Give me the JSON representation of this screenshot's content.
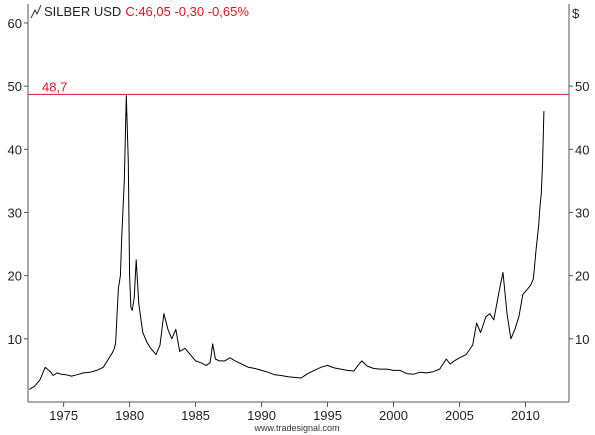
{
  "chart_data": {
    "type": "line",
    "title": "SILBER USD",
    "quote": "C:46,05 -0,30 -0,65%",
    "currency_label": "$",
    "footer": "www.tradesignal.com",
    "ylim": [
      0,
      63
    ],
    "xlim": [
      1972.3,
      2013.3
    ],
    "y_ticks_left": [
      10,
      20,
      30,
      40,
      50,
      60
    ],
    "y_ticks_right": [
      10,
      20,
      30,
      40,
      50
    ],
    "x_ticks": [
      1975,
      1980,
      1985,
      1990,
      1995,
      2000,
      2005,
      2010
    ],
    "reference_line": {
      "value": 48.7,
      "label": "48,7",
      "color": "#e0141e"
    },
    "colors": {
      "line": "#000000",
      "title": "#222222",
      "quote": "#e0141e",
      "axis": "#555555"
    },
    "grid": false,
    "series": [
      {
        "x": [
          1972.4,
          1972.8,
          1973.2,
          1973.6,
          1974.0,
          1974.2,
          1974.5,
          1974.8,
          1975.2,
          1975.6,
          1976.0,
          1976.5,
          1977.0,
          1977.5,
          1978.0,
          1978.4,
          1978.7,
          1978.85,
          1978.95,
          1979.05,
          1979.15,
          1979.3,
          1979.4,
          1979.6,
          1979.75,
          1979.9,
          1980.0,
          1980.1,
          1980.2,
          1980.35,
          1980.5,
          1980.7,
          1981.0,
          1981.3,
          1981.6,
          1982.0,
          1982.3,
          1982.6,
          1982.9,
          1983.2,
          1983.5,
          1983.8,
          1984.2,
          1984.6,
          1985.0,
          1985.4,
          1985.8,
          1986.1,
          1986.3,
          1986.5,
          1986.8,
          1987.2,
          1987.6,
          1988.0,
          1988.5,
          1989.0,
          1989.5,
          1990.0,
          1990.5,
          1991.0,
          1991.5,
          1992.0,
          1992.5,
          1993.0,
          1993.5,
          1994.0,
          1994.5,
          1995.0,
          1995.5,
          1996.0,
          1996.5,
          1997.0,
          1997.3,
          1997.6,
          1998.0,
          1998.5,
          1999.0,
          1999.5,
          2000.0,
          2000.5,
          2001.0,
          2001.5,
          2002.0,
          2002.5,
          2003.0,
          2003.5,
          2004.0,
          2004.3,
          2004.6,
          2005.0,
          2005.5,
          2006.0,
          2006.3,
          2006.6,
          2007.0,
          2007.3,
          2007.6,
          2008.0,
          2008.3,
          2008.6,
          2008.9,
          2009.2,
          2009.5,
          2009.8,
          2010.0,
          2010.2,
          2010.4,
          2010.6,
          2010.8,
          2011.0,
          2011.1,
          2011.2,
          2011.3,
          2011.4
        ],
        "values": [
          2.0,
          2.5,
          3.5,
          5.5,
          4.8,
          4.2,
          4.6,
          4.4,
          4.3,
          4.1,
          4.3,
          4.6,
          4.7,
          5.0,
          5.5,
          6.8,
          7.8,
          8.5,
          9.5,
          14.0,
          18.0,
          20.0,
          26.0,
          35.0,
          48.5,
          38.0,
          20.0,
          15.0,
          14.5,
          16.5,
          22.5,
          15.5,
          11.0,
          9.5,
          8.5,
          7.5,
          9.0,
          14.0,
          11.5,
          10.0,
          11.5,
          8.0,
          8.5,
          7.5,
          6.5,
          6.2,
          5.8,
          6.2,
          9.2,
          6.8,
          6.5,
          6.5,
          7.0,
          6.5,
          6.0,
          5.5,
          5.3,
          5.0,
          4.7,
          4.3,
          4.2,
          4.0,
          3.9,
          3.8,
          4.5,
          5.0,
          5.5,
          5.8,
          5.4,
          5.2,
          5.0,
          4.9,
          5.8,
          6.5,
          5.7,
          5.3,
          5.2,
          5.2,
          5.0,
          5.0,
          4.5,
          4.4,
          4.7,
          4.6,
          4.8,
          5.2,
          6.8,
          6.0,
          6.5,
          7.0,
          7.5,
          9.0,
          12.5,
          11.0,
          13.5,
          14.0,
          13.0,
          17.5,
          20.5,
          14.0,
          10.0,
          11.5,
          13.5,
          17.0,
          17.5,
          18.0,
          18.5,
          19.5,
          24.0,
          28.0,
          31.0,
          33.0,
          38.0,
          46.05
        ]
      }
    ]
  }
}
